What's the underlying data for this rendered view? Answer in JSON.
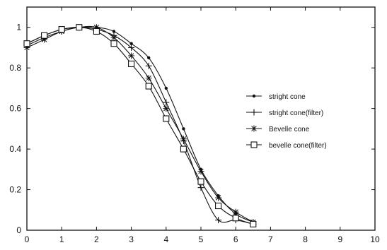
{
  "chart_data": {
    "type": "line",
    "xlim": [
      0,
      10
    ],
    "ylim": [
      0,
      1.1
    ],
    "xticks": [
      "0",
      "1",
      "2",
      "3",
      "4",
      "5",
      "6",
      "7",
      "8",
      "9",
      "10"
    ],
    "yticks": [
      "0",
      "0.2",
      "0.4",
      "0.6",
      "0.8",
      "1"
    ],
    "grid": false,
    "legend_position": "right",
    "series": [
      {
        "name": "stright cone",
        "marker": "dot",
        "x": [
          0,
          0.5,
          1,
          1.5,
          2,
          2.5,
          3,
          3.5,
          4,
          4.5,
          5,
          5.5,
          6,
          6.5
        ],
        "y": [
          0.92,
          0.96,
          0.99,
          1.0,
          1.0,
          0.98,
          0.92,
          0.85,
          0.7,
          0.5,
          0.3,
          0.17,
          0.08,
          0.04
        ]
      },
      {
        "name": "stright cone(filter)",
        "marker": "plus",
        "x": [
          0,
          0.5,
          1,
          1.5,
          2,
          2.5,
          3,
          3.5,
          4,
          4.5,
          5,
          5.5,
          6,
          6.5
        ],
        "y": [
          0.91,
          0.95,
          0.98,
          1.0,
          0.99,
          0.96,
          0.9,
          0.81,
          0.63,
          0.44,
          0.21,
          0.05,
          0.05,
          0.03
        ]
      },
      {
        "name": "Bevelle cone",
        "marker": "star",
        "x": [
          0,
          0.5,
          1,
          1.5,
          2,
          2.5,
          3,
          3.5,
          4,
          4.5,
          5,
          5.5,
          6,
          6.5
        ],
        "y": [
          0.9,
          0.94,
          0.98,
          1.0,
          1.0,
          0.95,
          0.86,
          0.75,
          0.6,
          0.45,
          0.29,
          0.16,
          0.09,
          0.04
        ]
      },
      {
        "name": "bevelle cone(filter)",
        "marker": "square",
        "x": [
          0,
          0.5,
          1,
          1.5,
          2,
          2.5,
          3,
          3.5,
          4,
          4.5,
          5,
          5.5,
          6,
          6.5
        ],
        "y": [
          0.92,
          0.96,
          0.99,
          1.0,
          0.98,
          0.92,
          0.82,
          0.71,
          0.55,
          0.4,
          0.24,
          0.12,
          0.06,
          0.03
        ]
      }
    ]
  }
}
